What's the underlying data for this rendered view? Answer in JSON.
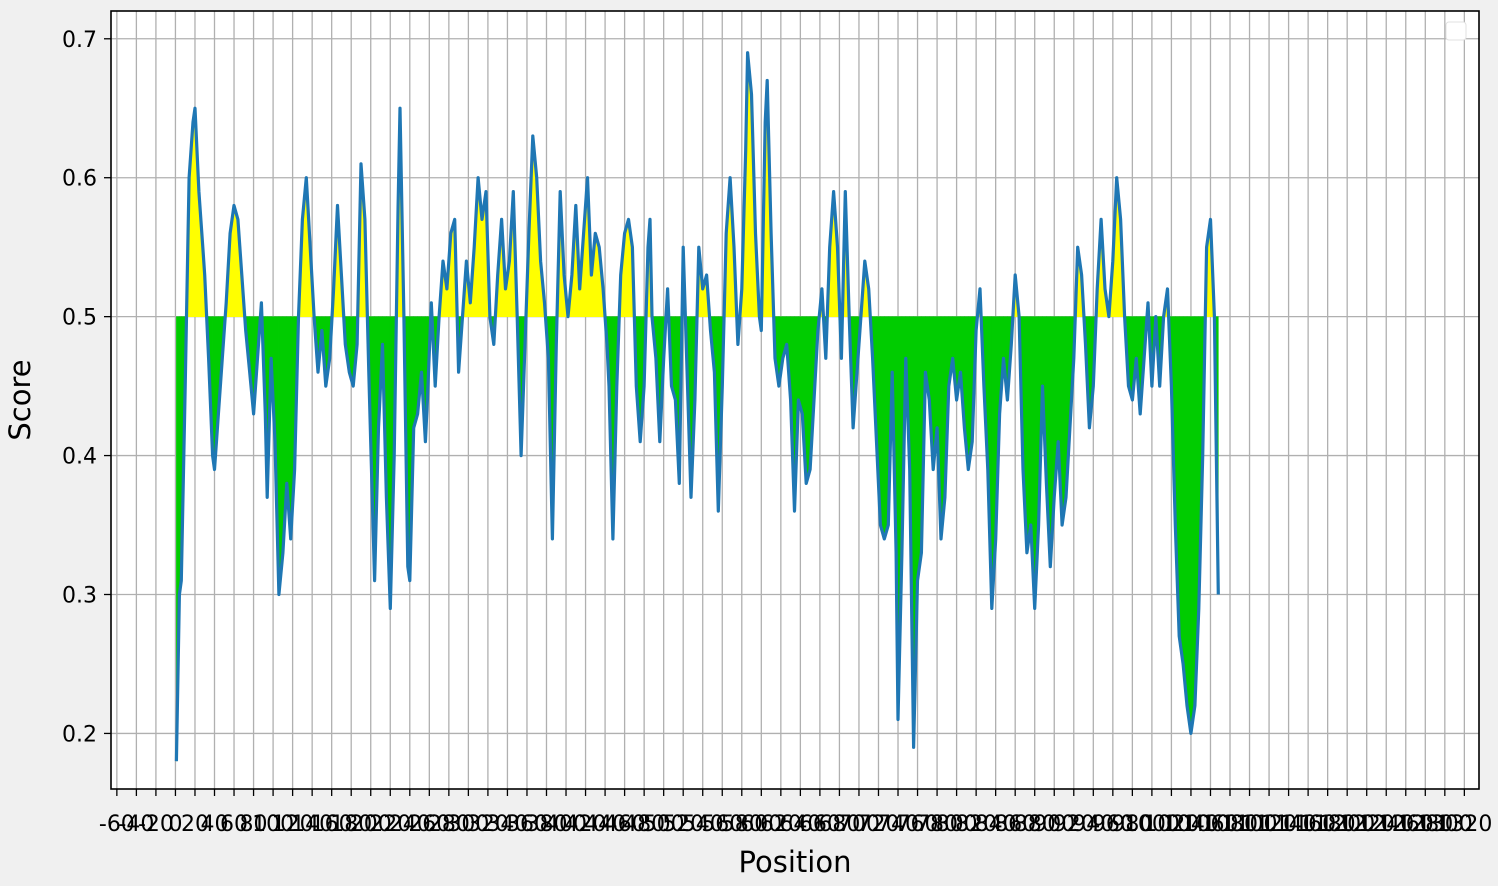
{
  "chart_data": {
    "type": "line",
    "title": "",
    "xlabel": "Position",
    "ylabel": "Score",
    "xlim": [
      -66,
      1335
    ],
    "ylim": [
      0.16,
      0.72
    ],
    "threshold": 0.5,
    "grid": true,
    "legend": "top-right, empty",
    "line_color": "#1f77b4",
    "fill_above_color": "#ffff00",
    "fill_below_color": "#00cc00",
    "xtick_labels": [
      "-60",
      "-40",
      "-20",
      "0",
      "20",
      "40",
      "60",
      "80",
      "100",
      "120",
      "140",
      "160",
      "180",
      "200",
      "220",
      "240",
      "260",
      "280",
      "300",
      "320",
      "340",
      "360",
      "380",
      "400",
      "420",
      "440",
      "460",
      "480",
      "500",
      "520",
      "540",
      "560",
      "580",
      "600",
      "620",
      "640",
      "660",
      "680",
      "700",
      "720",
      "740",
      "760",
      "780",
      "800",
      "820",
      "840",
      "860",
      "880",
      "900",
      "920",
      "940",
      "960",
      "980",
      "1000",
      "1020",
      "1040",
      "1060",
      "1080",
      "1100",
      "1120",
      "1140",
      "1160",
      "1180",
      "1200",
      "1220",
      "1240",
      "1260",
      "1280",
      "1300",
      "1320"
    ],
    "ytick_labels": [
      "0.2",
      "0.3",
      "0.4",
      "0.5",
      "0.6",
      "0.7"
    ],
    "series": [
      {
        "values": [
          [
            1,
            0.18
          ],
          [
            4,
            0.3
          ],
          [
            6,
            0.31
          ],
          [
            10,
            0.45
          ],
          [
            14,
            0.6
          ],
          [
            18,
            0.64
          ],
          [
            20,
            0.65
          ],
          [
            24,
            0.59
          ],
          [
            28,
            0.55
          ],
          [
            30,
            0.53
          ],
          [
            34,
            0.47
          ],
          [
            38,
            0.4
          ],
          [
            40,
            0.39
          ],
          [
            44,
            0.43
          ],
          [
            48,
            0.47
          ],
          [
            52,
            0.51
          ],
          [
            56,
            0.56
          ],
          [
            60,
            0.58
          ],
          [
            64,
            0.57
          ],
          [
            68,
            0.53
          ],
          [
            72,
            0.49
          ],
          [
            76,
            0.46
          ],
          [
            80,
            0.43
          ],
          [
            84,
            0.47
          ],
          [
            88,
            0.51
          ],
          [
            92,
            0.43
          ],
          [
            94,
            0.37
          ],
          [
            98,
            0.47
          ],
          [
            102,
            0.41
          ],
          [
            106,
            0.3
          ],
          [
            110,
            0.33
          ],
          [
            114,
            0.38
          ],
          [
            118,
            0.34
          ],
          [
            122,
            0.39
          ],
          [
            126,
            0.5
          ],
          [
            130,
            0.57
          ],
          [
            134,
            0.6
          ],
          [
            138,
            0.55
          ],
          [
            142,
            0.5
          ],
          [
            146,
            0.46
          ],
          [
            150,
            0.49
          ],
          [
            154,
            0.45
          ],
          [
            158,
            0.47
          ],
          [
            162,
            0.52
          ],
          [
            166,
            0.58
          ],
          [
            170,
            0.53
          ],
          [
            174,
            0.48
          ],
          [
            178,
            0.46
          ],
          [
            182,
            0.45
          ],
          [
            186,
            0.48
          ],
          [
            190,
            0.61
          ],
          [
            194,
            0.57
          ],
          [
            198,
            0.46
          ],
          [
            200,
            0.41
          ],
          [
            204,
            0.31
          ],
          [
            208,
            0.42
          ],
          [
            212,
            0.48
          ],
          [
            216,
            0.37
          ],
          [
            220,
            0.29
          ],
          [
            224,
            0.4
          ],
          [
            228,
            0.58
          ],
          [
            230,
            0.65
          ],
          [
            234,
            0.5
          ],
          [
            238,
            0.32
          ],
          [
            240,
            0.31
          ],
          [
            244,
            0.42
          ],
          [
            248,
            0.43
          ],
          [
            252,
            0.46
          ],
          [
            256,
            0.41
          ],
          [
            258,
            0.44
          ],
          [
            262,
            0.51
          ],
          [
            266,
            0.45
          ],
          [
            270,
            0.5
          ],
          [
            274,
            0.54
          ],
          [
            278,
            0.52
          ],
          [
            282,
            0.56
          ],
          [
            286,
            0.57
          ],
          [
            290,
            0.46
          ],
          [
            294,
            0.5
          ],
          [
            298,
            0.54
          ],
          [
            302,
            0.51
          ],
          [
            306,
            0.55
          ],
          [
            310,
            0.6
          ],
          [
            314,
            0.57
          ],
          [
            318,
            0.59
          ],
          [
            322,
            0.5
          ],
          [
            326,
            0.48
          ],
          [
            330,
            0.53
          ],
          [
            334,
            0.57
          ],
          [
            338,
            0.52
          ],
          [
            342,
            0.54
          ],
          [
            346,
            0.59
          ],
          [
            350,
            0.5
          ],
          [
            354,
            0.4
          ],
          [
            358,
            0.48
          ],
          [
            362,
            0.56
          ],
          [
            366,
            0.63
          ],
          [
            370,
            0.6
          ],
          [
            374,
            0.54
          ],
          [
            378,
            0.51
          ],
          [
            382,
            0.47
          ],
          [
            386,
            0.34
          ],
          [
            390,
            0.48
          ],
          [
            394,
            0.59
          ],
          [
            398,
            0.53
          ],
          [
            402,
            0.5
          ],
          [
            406,
            0.53
          ],
          [
            410,
            0.58
          ],
          [
            414,
            0.52
          ],
          [
            418,
            0.56
          ],
          [
            422,
            0.6
          ],
          [
            426,
            0.53
          ],
          [
            430,
            0.56
          ],
          [
            434,
            0.55
          ],
          [
            438,
            0.52
          ],
          [
            442,
            0.48
          ],
          [
            444,
            0.45
          ],
          [
            448,
            0.34
          ],
          [
            452,
            0.45
          ],
          [
            456,
            0.53
          ],
          [
            460,
            0.56
          ],
          [
            464,
            0.57
          ],
          [
            468,
            0.55
          ],
          [
            472,
            0.45
          ],
          [
            476,
            0.41
          ],
          [
            480,
            0.45
          ],
          [
            484,
            0.55
          ],
          [
            486,
            0.57
          ],
          [
            488,
            0.5
          ],
          [
            492,
            0.47
          ],
          [
            496,
            0.41
          ],
          [
            500,
            0.47
          ],
          [
            504,
            0.52
          ],
          [
            508,
            0.45
          ],
          [
            512,
            0.44
          ],
          [
            516,
            0.38
          ],
          [
            520,
            0.55
          ],
          [
            524,
            0.46
          ],
          [
            528,
            0.37
          ],
          [
            532,
            0.44
          ],
          [
            536,
            0.55
          ],
          [
            540,
            0.52
          ],
          [
            544,
            0.53
          ],
          [
            548,
            0.49
          ],
          [
            552,
            0.46
          ],
          [
            556,
            0.36
          ],
          [
            560,
            0.45
          ],
          [
            564,
            0.56
          ],
          [
            568,
            0.6
          ],
          [
            572,
            0.55
          ],
          [
            576,
            0.48
          ],
          [
            580,
            0.52
          ],
          [
            584,
            0.62
          ],
          [
            586,
            0.69
          ],
          [
            590,
            0.66
          ],
          [
            594,
            0.56
          ],
          [
            598,
            0.5
          ],
          [
            600,
            0.49
          ],
          [
            604,
            0.64
          ],
          [
            606,
            0.67
          ],
          [
            610,
            0.56
          ],
          [
            614,
            0.47
          ],
          [
            618,
            0.45
          ],
          [
            622,
            0.47
          ],
          [
            626,
            0.48
          ],
          [
            630,
            0.44
          ],
          [
            634,
            0.36
          ],
          [
            638,
            0.44
          ],
          [
            642,
            0.43
          ],
          [
            646,
            0.38
          ],
          [
            650,
            0.39
          ],
          [
            654,
            0.44
          ],
          [
            658,
            0.49
          ],
          [
            662,
            0.52
          ],
          [
            666,
            0.47
          ],
          [
            670,
            0.55
          ],
          [
            674,
            0.59
          ],
          [
            678,
            0.55
          ],
          [
            682,
            0.47
          ],
          [
            686,
            0.59
          ],
          [
            690,
            0.5
          ],
          [
            694,
            0.42
          ],
          [
            698,
            0.46
          ],
          [
            702,
            0.5
          ],
          [
            706,
            0.54
          ],
          [
            710,
            0.52
          ],
          [
            714,
            0.47
          ],
          [
            718,
            0.41
          ],
          [
            722,
            0.35
          ],
          [
            726,
            0.34
          ],
          [
            730,
            0.35
          ],
          [
            734,
            0.46
          ],
          [
            738,
            0.33
          ],
          [
            740,
            0.21
          ],
          [
            744,
            0.33
          ],
          [
            748,
            0.47
          ],
          [
            752,
            0.39
          ],
          [
            756,
            0.19
          ],
          [
            760,
            0.31
          ],
          [
            764,
            0.33
          ],
          [
            768,
            0.46
          ],
          [
            772,
            0.44
          ],
          [
            776,
            0.39
          ],
          [
            780,
            0.42
          ],
          [
            784,
            0.34
          ],
          [
            788,
            0.37
          ],
          [
            792,
            0.45
          ],
          [
            796,
            0.47
          ],
          [
            800,
            0.44
          ],
          [
            804,
            0.46
          ],
          [
            808,
            0.42
          ],
          [
            812,
            0.39
          ],
          [
            816,
            0.41
          ],
          [
            820,
            0.49
          ],
          [
            824,
            0.52
          ],
          [
            828,
            0.45
          ],
          [
            832,
            0.39
          ],
          [
            836,
            0.29
          ],
          [
            840,
            0.34
          ],
          [
            844,
            0.43
          ],
          [
            848,
            0.47
          ],
          [
            852,
            0.44
          ],
          [
            856,
            0.48
          ],
          [
            860,
            0.53
          ],
          [
            864,
            0.5
          ],
          [
            868,
            0.39
          ],
          [
            872,
            0.33
          ],
          [
            876,
            0.35
          ],
          [
            880,
            0.29
          ],
          [
            884,
            0.35
          ],
          [
            888,
            0.45
          ],
          [
            892,
            0.38
          ],
          [
            896,
            0.32
          ],
          [
            900,
            0.37
          ],
          [
            904,
            0.41
          ],
          [
            908,
            0.35
          ],
          [
            912,
            0.37
          ],
          [
            916,
            0.42
          ],
          [
            920,
            0.47
          ],
          [
            924,
            0.55
          ],
          [
            928,
            0.53
          ],
          [
            932,
            0.48
          ],
          [
            936,
            0.42
          ],
          [
            940,
            0.45
          ],
          [
            944,
            0.52
          ],
          [
            948,
            0.57
          ],
          [
            952,
            0.52
          ],
          [
            956,
            0.5
          ],
          [
            960,
            0.54
          ],
          [
            964,
            0.6
          ],
          [
            968,
            0.57
          ],
          [
            972,
            0.5
          ],
          [
            976,
            0.45
          ],
          [
            980,
            0.44
          ],
          [
            984,
            0.47
          ],
          [
            988,
            0.43
          ],
          [
            992,
            0.47
          ],
          [
            996,
            0.51
          ],
          [
            1000,
            0.45
          ],
          [
            1004,
            0.5
          ],
          [
            1008,
            0.45
          ],
          [
            1012,
            0.5
          ],
          [
            1016,
            0.52
          ],
          [
            1020,
            0.45
          ],
          [
            1024,
            0.35
          ],
          [
            1028,
            0.27
          ],
          [
            1032,
            0.25
          ],
          [
            1036,
            0.22
          ],
          [
            1040,
            0.2
          ],
          [
            1044,
            0.22
          ],
          [
            1048,
            0.29
          ],
          [
            1052,
            0.4
          ],
          [
            1056,
            0.55
          ],
          [
            1060,
            0.57
          ],
          [
            1064,
            0.5
          ],
          [
            1068,
            0.3
          ]
        ]
      }
    ]
  }
}
